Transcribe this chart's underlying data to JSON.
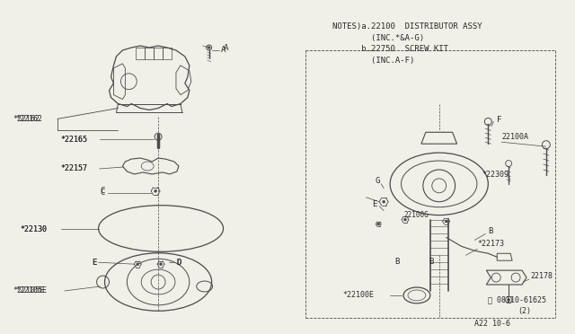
{
  "bg_color": "#f0efe8",
  "line_color": "#4a4a4a",
  "text_color": "#2a2a2a",
  "notes_lines": [
    "NOTES)a.22100  DISTRIBUTOR ASSY",
    "        (INC.*&A-G)",
    "      b.22750  SCREW KIT",
    "        (INC.A-F)"
  ],
  "footer": "A22 10-6"
}
